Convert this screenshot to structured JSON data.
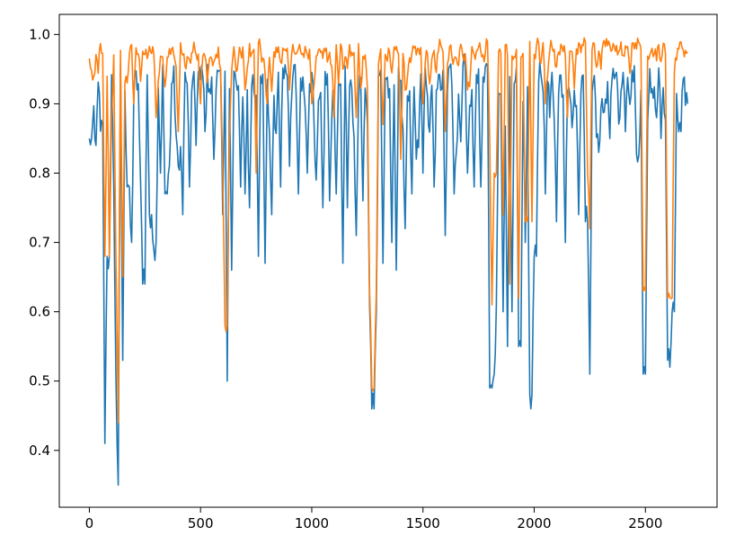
{
  "chart_data": {
    "type": "line",
    "title": "",
    "xlabel": "",
    "ylabel": "",
    "xlim": [
      -135,
      2822
    ],
    "ylim": [
      0.318,
      1.029
    ],
    "xticks": [
      0,
      500,
      1000,
      1500,
      2000,
      2500
    ],
    "xtick_labels": [
      "0",
      "500",
      "1000",
      "1500",
      "2000",
      "2500"
    ],
    "yticks": [
      0.4,
      0.5,
      0.6,
      0.7,
      0.8,
      0.9,
      1.0
    ],
    "ytick_labels": [
      "0.4",
      "0.5",
      "0.6",
      "0.7",
      "0.8",
      "0.9",
      "1.0"
    ],
    "grid": false,
    "legend": "none",
    "colors": [
      "#1f77b4",
      "#ff7f0e"
    ],
    "series": [
      {
        "color": "#1f77b4",
        "baseline": 0.93,
        "noise": 0.045,
        "x_max": 2690,
        "step": 10,
        "dips": [
          [
            5,
            0.85
          ],
          [
            30,
            0.84
          ],
          [
            60,
            0.87
          ],
          [
            70,
            0.41
          ],
          [
            85,
            0.68
          ],
          [
            110,
            0.78
          ],
          [
            120,
            0.5
          ],
          [
            130,
            0.35
          ],
          [
            150,
            0.53
          ],
          [
            175,
            0.78
          ],
          [
            190,
            0.7
          ],
          [
            230,
            0.79
          ],
          [
            245,
            0.64
          ],
          [
            275,
            0.74
          ],
          [
            290,
            0.69
          ],
          [
            300,
            0.7
          ],
          [
            320,
            0.8
          ],
          [
            345,
            0.77
          ],
          [
            360,
            0.81
          ],
          [
            400,
            0.81
          ],
          [
            420,
            0.74
          ],
          [
            450,
            0.78
          ],
          [
            480,
            0.84
          ],
          [
            520,
            0.86
          ],
          [
            560,
            0.82
          ],
          [
            600,
            0.74
          ],
          [
            620,
            0.5
          ],
          [
            640,
            0.66
          ],
          [
            680,
            0.78
          ],
          [
            700,
            0.77
          ],
          [
            720,
            0.75
          ],
          [
            760,
            0.68
          ],
          [
            790,
            0.67
          ],
          [
            820,
            0.74
          ],
          [
            860,
            0.78
          ],
          [
            900,
            0.81
          ],
          [
            940,
            0.77
          ],
          [
            980,
            0.8
          ],
          [
            1020,
            0.79
          ],
          [
            1050,
            0.75
          ],
          [
            1080,
            0.76
          ],
          [
            1110,
            0.77
          ],
          [
            1140,
            0.67
          ],
          [
            1160,
            0.75
          ],
          [
            1200,
            0.71
          ],
          [
            1230,
            0.76
          ],
          [
            1260,
            0.61
          ],
          [
            1275,
            0.46
          ],
          [
            1290,
            0.6
          ],
          [
            1320,
            0.67
          ],
          [
            1360,
            0.7
          ],
          [
            1380,
            0.66
          ],
          [
            1420,
            0.72
          ],
          [
            1450,
            0.77
          ],
          [
            1500,
            0.8
          ],
          [
            1550,
            0.78
          ],
          [
            1600,
            0.71
          ],
          [
            1640,
            0.77
          ],
          [
            1700,
            0.8
          ],
          [
            1730,
            0.78
          ],
          [
            1760,
            0.78
          ],
          [
            1805,
            0.49
          ],
          [
            1815,
            0.51
          ],
          [
            1830,
            0.61
          ],
          [
            1860,
            0.6
          ],
          [
            1880,
            0.55
          ],
          [
            1900,
            0.6
          ],
          [
            1935,
            0.55
          ],
          [
            1960,
            0.7
          ],
          [
            1985,
            0.48
          ],
          [
            2005,
            0.68
          ],
          [
            2050,
            0.77
          ],
          [
            2100,
            0.73
          ],
          [
            2140,
            0.7
          ],
          [
            2200,
            0.74
          ],
          [
            2235,
            0.73
          ],
          [
            2250,
            0.51
          ],
          [
            2290,
            0.83
          ],
          [
            2340,
            0.85
          ],
          [
            2410,
            0.86
          ],
          [
            2480,
            0.92
          ],
          [
            2495,
            0.51
          ],
          [
            2510,
            0.88
          ],
          [
            2550,
            0.88
          ],
          [
            2570,
            0.85
          ],
          [
            2600,
            0.53
          ],
          [
            2610,
            0.52
          ],
          [
            2625,
            0.6
          ],
          [
            2660,
            0.89
          ],
          [
            2690,
            0.9
          ]
        ]
      },
      {
        "color": "#ff7f0e",
        "baseline": 0.975,
        "noise": 0.025,
        "x_max": 2690,
        "step": 10,
        "dips": [
          [
            10,
            0.95
          ],
          [
            70,
            0.68
          ],
          [
            90,
            0.68
          ],
          [
            100,
            0.88
          ],
          [
            120,
            0.67
          ],
          [
            130,
            0.44
          ],
          [
            150,
            0.65
          ],
          [
            165,
            0.93
          ],
          [
            200,
            0.9
          ],
          [
            300,
            0.88
          ],
          [
            400,
            0.86
          ],
          [
            500,
            0.9
          ],
          [
            600,
            0.8
          ],
          [
            615,
            0.58
          ],
          [
            630,
            0.85
          ],
          [
            700,
            0.92
          ],
          [
            750,
            0.8
          ],
          [
            800,
            0.9
          ],
          [
            900,
            0.92
          ],
          [
            1000,
            0.9
          ],
          [
            1100,
            0.88
          ],
          [
            1200,
            0.88
          ],
          [
            1265,
            0.63
          ],
          [
            1275,
            0.49
          ],
          [
            1285,
            0.63
          ],
          [
            1320,
            0.87
          ],
          [
            1400,
            0.82
          ],
          [
            1500,
            0.9
          ],
          [
            1600,
            0.86
          ],
          [
            1700,
            0.92
          ],
          [
            1800,
            0.85
          ],
          [
            1810,
            0.61
          ],
          [
            1825,
            0.8
          ],
          [
            1860,
            0.74
          ],
          [
            1890,
            0.64
          ],
          [
            1930,
            0.62
          ],
          [
            1965,
            0.73
          ],
          [
            1990,
            0.73
          ],
          [
            2050,
            0.9
          ],
          [
            2150,
            0.88
          ],
          [
            2240,
            0.8
          ],
          [
            2250,
            0.72
          ],
          [
            2300,
            0.95
          ],
          [
            2400,
            0.97
          ],
          [
            2495,
            0.63
          ],
          [
            2520,
            0.97
          ],
          [
            2600,
            0.62
          ],
          [
            2615,
            0.62
          ],
          [
            2640,
            0.97
          ],
          [
            2690,
            0.99
          ]
        ]
      }
    ]
  }
}
